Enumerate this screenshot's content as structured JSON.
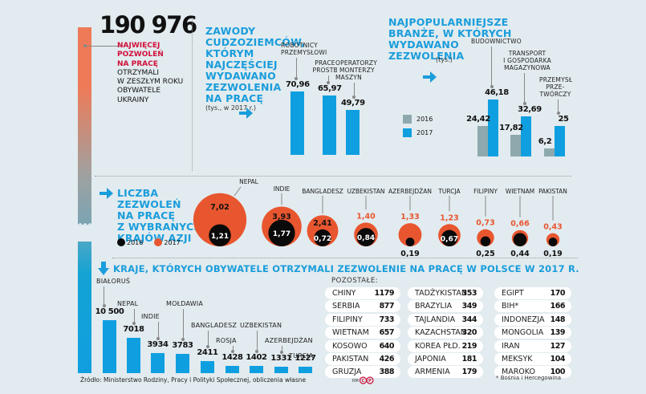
{
  "headline": {
    "number": "190 976",
    "red_text": [
      "NAJWIĘCEJ",
      "POZWOLEŃ",
      "NA PRACĘ"
    ],
    "black_text": [
      "OTRZYMALI",
      "W ZESZŁYM ROKU",
      "OBYWATELE",
      "UKRAINY"
    ]
  },
  "colors": {
    "blue": "#0f9fe0",
    "grey": "#8ea9ad",
    "orange": "#e8562f",
    "red_text": "#d0103a",
    "black": "#0a0a0a",
    "background": "#e2ebef"
  },
  "chart_data": [
    {
      "type": "bar",
      "title": "ZAWODY CUDZOZIEMCÓW, KTÓRYM NAJCZĘŚCIEJ WYDAWANO ZEZWOLENIA NA PRACĘ",
      "title_lines": [
        "ZAWODY",
        "CUDZOZIEMCÓW,",
        "KTÓRYM",
        "NAJCZĘŚCIEJ",
        "WYDAWANO",
        "ZEZWOLENIA",
        "NA PRACĘ"
      ],
      "subtitle": "(tys., w 2017 r.)",
      "categories": [
        "ROBOTNICY PRZEMYSŁOWI",
        "PRACE PROSTE",
        "OPERATORZY I MONTERZY MASZYN"
      ],
      "category_lines": [
        [
          "ROBOTNICY",
          "PRZEMYSŁOWI"
        ],
        [
          "PRACE",
          "PROSTE"
        ],
        [
          "OPERATORZY",
          "I MONTERZY",
          "MASZYN"
        ]
      ],
      "values": [
        70.96,
        65.97,
        49.79
      ],
      "value_labels": [
        "70,96",
        "65,97",
        "49,79"
      ],
      "unit": "tys."
    },
    {
      "type": "bar",
      "title": "NAJPOPULARNIEJSZE BRANŻE, W KTÓRYCH WYDAWANO ZEZWOLENIA",
      "title_lines": [
        "NAJPOPULARNIEJSZE",
        "BRANŻE, W KTÓRYCH",
        "WYDAWANO",
        "ZEZWOLENIA"
      ],
      "subtitle": "(tys.)",
      "categories": [
        "BUDOWNICTWO",
        "TRANSPORT I GOSPODARKA MAGAZYNOWA",
        "PRZEMYSŁ PRZETWÓRCZY"
      ],
      "category_lines": [
        [
          "BUDOWNICTWO"
        ],
        [
          "TRANSPORT",
          "I GOSPODARKA",
          "MAGAZYNOWA"
        ],
        [
          "PRZEMYSŁ",
          "PRZE-",
          "TWÓRCZY"
        ]
      ],
      "legend": [
        "2016",
        "2017"
      ],
      "series": [
        {
          "name": "2016",
          "values": [
            24.42,
            17.82,
            6.2
          ],
          "labels": [
            "24,42",
            "17,82",
            "6,2"
          ]
        },
        {
          "name": "2017",
          "values": [
            46.18,
            32.69,
            25
          ],
          "labels": [
            "46,18",
            "32,69",
            "25"
          ]
        }
      ],
      "unit": "tys."
    },
    {
      "type": "bubble",
      "title": "LICZBA ZEZWOLEŃ NA PRACĘ Z WYBRANYCH KRAJÓW AZJI",
      "title_lines": [
        "LICZBA",
        "ZEZWOLEŃ",
        "NA PRACĘ",
        "Z WYBRANYCH",
        "KRAJÓW AZJI"
      ],
      "legend": [
        "2016",
        "2017"
      ],
      "categories": [
        "NEPAL",
        "INDIE",
        "BANGLADESZ",
        "UZBEKISTAN",
        "AZERBEJDŻAN",
        "TURCJA",
        "FILIPINY",
        "WIETNAM",
        "PAKISTAN"
      ],
      "series": [
        {
          "name": "2016",
          "values": [
            1.21,
            1.77,
            0.72,
            0.84,
            0.19,
            0.67,
            0.25,
            0.44,
            0.19
          ],
          "labels": [
            "1,21",
            "1,77",
            "0,72",
            "0,84",
            "0,19",
            "0,67",
            "0,25",
            "0,44",
            "0,19"
          ]
        },
        {
          "name": "2017",
          "values": [
            7.02,
            3.93,
            2.41,
            1.4,
            1.33,
            1.23,
            0.73,
            0.66,
            0.43
          ],
          "labels": [
            "7,02",
            "3,93",
            "2,41",
            "1,40",
            "1,33",
            "1,23",
            "0,73",
            "0,66",
            "0,43"
          ]
        }
      ],
      "unit": "tys."
    },
    {
      "type": "bar",
      "title": "KRAJE, KTÓRYCH OBYWATELE OTRZYMALI ZEZWOLENIE NA PRACĘ W POLSCE W 2017 R.",
      "categories": [
        "BIAŁORUŚ",
        "NEPAL",
        "INDIE",
        "MOŁDAWIA",
        "BANGLADESZ",
        "ROSJA",
        "UZBEKISTAN",
        "AZERBEJDŻAN",
        "TURCJA"
      ],
      "values": [
        10500,
        7018,
        3934,
        3783,
        2411,
        1428,
        1402,
        1331,
        1227
      ],
      "value_labels": [
        "10 500",
        "7018",
        "3934",
        "3783",
        "2411",
        "1428",
        "1402",
        "1331",
        "1227"
      ],
      "headline_value": 190976,
      "headline_category": "UKRAINA"
    },
    {
      "type": "table",
      "title": "POZOSTAŁE:",
      "rows": [
        [
          "CHINY",
          "1179"
        ],
        [
          "SERBIA",
          "877"
        ],
        [
          "FILIPINY",
          "733"
        ],
        [
          "WIETNAM",
          "657"
        ],
        [
          "KOSOWO",
          "640"
        ],
        [
          "PAKISTAN",
          "426"
        ],
        [
          "GRUZJA",
          "388"
        ],
        [
          "TADŻYKISTAN",
          "353"
        ],
        [
          "BRAZYLIA",
          "349"
        ],
        [
          "TAJLANDIA",
          "344"
        ],
        [
          "KAZACHSTAN",
          "320"
        ],
        [
          "KOREA PŁD.",
          "219"
        ],
        [
          "JAPONIA",
          "181"
        ],
        [
          "ARMENIA",
          "179"
        ],
        [
          "EGIPT",
          "170"
        ],
        [
          "BIH*",
          "166"
        ],
        [
          "INDONEZJA",
          "148"
        ],
        [
          "MONGOLIA",
          "139"
        ],
        [
          "IRAN",
          "127"
        ],
        [
          "MEKSYK",
          "104"
        ],
        [
          "MAROKO",
          "100"
        ]
      ],
      "footnote": "* Bośnia i Hercegowina"
    }
  ],
  "footer": {
    "source": "Źródło: Ministerstwo Rodziny, Pracy i Polityki Społecznej, obliczenia własne",
    "credit": "RM"
  }
}
